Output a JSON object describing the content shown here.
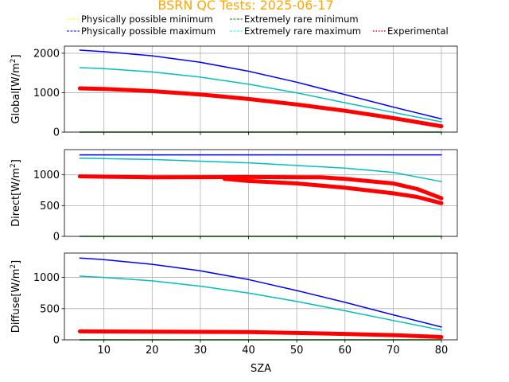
{
  "chart_data": {
    "type": "line",
    "title": "BSRN QC Tests: 2025-06-17",
    "title_color": "#ffa500",
    "xlabel": "SZA",
    "xlim": [
      1.8,
      83.3
    ],
    "xticks": [
      10,
      20,
      30,
      40,
      50,
      60,
      70,
      80
    ],
    "grid": true,
    "legend": {
      "placement": "top",
      "entries": [
        {
          "label": "Physically possible minimum",
          "color": "#ffff00",
          "style": "dashed"
        },
        {
          "label": "Extremely rare minimum",
          "color": "#008000",
          "style": "dashed"
        },
        {
          "label": "Physically possible maximum",
          "color": "#0000ff",
          "style": "dashed"
        },
        {
          "label": "Extremely rare maximum",
          "color": "#00ffff",
          "style": "dashed"
        },
        {
          "label": "Experimental",
          "color": "#ff0000",
          "style": "dotted"
        }
      ]
    },
    "panels": [
      {
        "id": "global",
        "ylabel_main": "Global[W/m",
        "ylabel_sup": "2",
        "ylabel_end": "]",
        "ylim": [
          0,
          2180
        ],
        "yticks": [
          0,
          1000,
          2000
        ],
        "series": [
          {
            "role": "pp_max",
            "color": "#0000ff",
            "x": [
              5,
              10,
              20,
              30,
              40,
              50,
              60,
              70,
              80
            ],
            "y": [
              2080,
              2040,
              1935,
              1770,
              1545,
              1265,
              950,
              635,
              335
            ]
          },
          {
            "role": "er_max",
            "color": "#00bfbf",
            "x": [
              5,
              10,
              20,
              30,
              40,
              50,
              60,
              70,
              80
            ],
            "y": [
              1635,
              1610,
              1525,
              1395,
              1215,
              995,
              745,
              500,
              260
            ]
          },
          {
            "role": "er_min",
            "color": "#008000",
            "x": [
              5,
              80
            ],
            "y": [
              0,
              0
            ]
          },
          {
            "role": "experimental",
            "color": "#ff0000",
            "x": [
              5,
              10,
              20,
              30,
              40,
              50,
              60,
              70,
              80
            ],
            "y": [
              1110,
              1095,
              1040,
              955,
              840,
              700,
              540,
              355,
              150
            ]
          }
        ]
      },
      {
        "id": "direct",
        "ylabel_main": "Direct[W/m",
        "ylabel_sup": "2",
        "ylabel_end": "]",
        "ylim": [
          0,
          1410
        ],
        "yticks": [
          0,
          500,
          1000
        ],
        "series": [
          {
            "role": "pp_max",
            "color": "#0000ff",
            "x": [
              5,
              80
            ],
            "y": [
              1325,
              1325
            ]
          },
          {
            "role": "er_max",
            "color": "#00bfbf",
            "x": [
              5,
              20,
              40,
              60,
              70,
              80
            ],
            "y": [
              1270,
              1250,
              1195,
              1110,
              1040,
              890
            ]
          },
          {
            "role": "er_min",
            "color": "#008000",
            "x": [
              5,
              80
            ],
            "y": [
              0,
              0
            ]
          },
          {
            "role": "experimental_upper",
            "color": "#ff0000",
            "x": [
              5,
              20,
              40,
              55,
              60,
              70,
              75,
              80
            ],
            "y": [
              975,
              960,
              965,
              960,
              935,
              860,
              770,
              620
            ]
          },
          {
            "role": "experimental_lower",
            "color": "#ff0000",
            "x": [
              35,
              40,
              50,
              60,
              70,
              75,
              80
            ],
            "y": [
              935,
              900,
              860,
              790,
              700,
              640,
              540
            ]
          }
        ]
      },
      {
        "id": "diffuse",
        "ylabel_main": "Diffuse[W/m",
        "ylabel_sup": "2",
        "ylabel_end": "]",
        "ylim": [
          0,
          1390
        ],
        "yticks": [
          0,
          500,
          1000
        ],
        "series": [
          {
            "role": "pp_max",
            "color": "#0000ff",
            "x": [
              5,
              10,
              20,
              30,
              40,
              50,
              60,
              70,
              80
            ],
            "y": [
              1310,
              1285,
              1210,
              1105,
              965,
              790,
              600,
              400,
              205
            ]
          },
          {
            "role": "er_max",
            "color": "#00bfbf",
            "x": [
              5,
              10,
              20,
              30,
              40,
              50,
              60,
              70,
              80
            ],
            "y": [
              1020,
              1000,
              945,
              860,
              750,
              615,
              465,
              310,
              155
            ]
          },
          {
            "role": "er_min",
            "color": "#008000",
            "x": [
              5,
              80
            ],
            "y": [
              0,
              0
            ]
          },
          {
            "role": "experimental",
            "color": "#ff0000",
            "x": [
              5,
              20,
              40,
              50,
              60,
              70,
              80
            ],
            "y": [
              135,
              130,
              125,
              110,
              95,
              75,
              45
            ]
          }
        ]
      }
    ]
  }
}
